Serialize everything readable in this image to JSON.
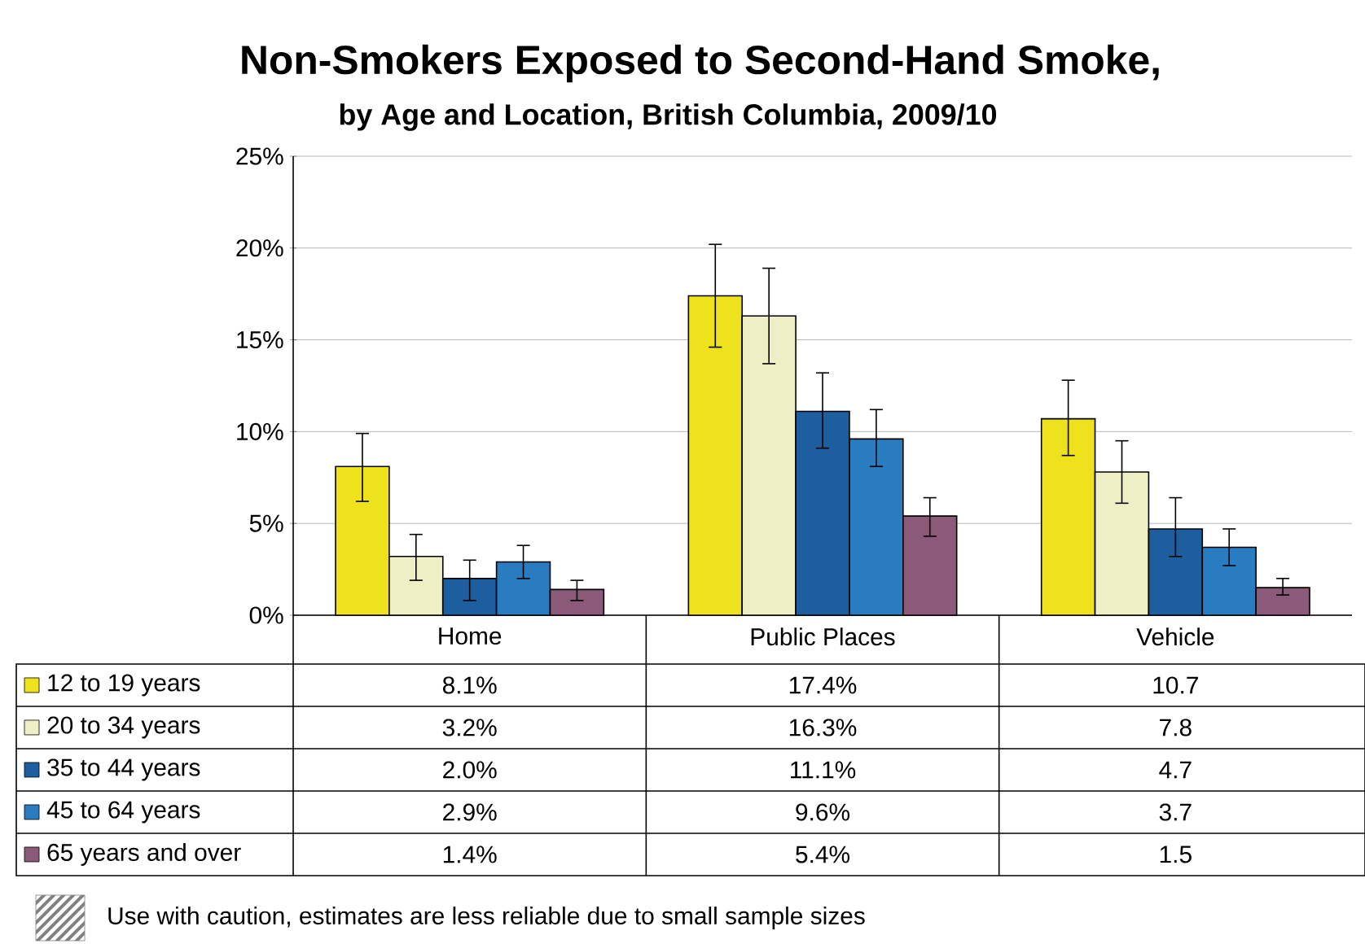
{
  "chart_data": {
    "type": "bar",
    "title": "Non-Smokers Exposed to Second-Hand Smoke,",
    "subtitle": "by Age and Location, British Columbia, 2009/10",
    "categories": [
      "Home",
      "Public Places",
      "Vehicle"
    ],
    "series": [
      {
        "name": "12 to 19 years",
        "color": "#eee21c",
        "values": [
          8.1,
          17.4,
          10.7
        ],
        "value_labels": [
          "8.1%",
          "17.4%",
          "10.7"
        ],
        "errors": [
          [
            6.2,
            9.9
          ],
          [
            14.6,
            20.2
          ],
          [
            8.7,
            12.8
          ]
        ]
      },
      {
        "name": "20 to 34 years",
        "color": "#efefc6",
        "values": [
          3.2,
          16.3,
          7.8
        ],
        "value_labels": [
          "3.2%",
          "16.3%",
          "7.8"
        ],
        "errors": [
          [
            1.9,
            4.4
          ],
          [
            13.7,
            18.9
          ],
          [
            6.1,
            9.5
          ]
        ]
      },
      {
        "name": "35 to 44 years",
        "color": "#1d5f9e",
        "values": [
          2.0,
          11.1,
          4.7
        ],
        "value_labels": [
          "2.0%",
          "11.1%",
          "4.7"
        ],
        "errors": [
          [
            0.8,
            3.0
          ],
          [
            9.1,
            13.2
          ],
          [
            3.2,
            6.4
          ]
        ]
      },
      {
        "name": "45 to 64 years",
        "color": "#2a7cc0",
        "values": [
          2.9,
          9.6,
          3.7
        ],
        "value_labels": [
          "2.9%",
          "9.6%",
          "3.7"
        ],
        "errors": [
          [
            2.0,
            3.8
          ],
          [
            8.1,
            11.2
          ],
          [
            2.7,
            4.7
          ]
        ]
      },
      {
        "name": "65 years and over",
        "color": "#8a5a78",
        "values": [
          1.4,
          5.4,
          1.5
        ],
        "value_labels": [
          "1.4%",
          "5.4%",
          "1.5"
        ],
        "errors": [
          [
            0.8,
            1.9
          ],
          [
            4.3,
            6.4
          ],
          [
            1.1,
            2.0
          ]
        ]
      }
    ],
    "ylim": [
      0,
      25
    ],
    "yticks": [
      {
        "value": 0,
        "label": "0%"
      },
      {
        "value": 5,
        "label": "5%"
      },
      {
        "value": 10,
        "label": "10%"
      },
      {
        "value": 15,
        "label": "15%"
      },
      {
        "value": 20,
        "label": "20%"
      },
      {
        "value": 25,
        "label": "25%"
      }
    ],
    "grid": "y",
    "legend": "bottom",
    "annotations": [
      "Use with caution, estimates are less reliable due to small sample sizes"
    ]
  }
}
